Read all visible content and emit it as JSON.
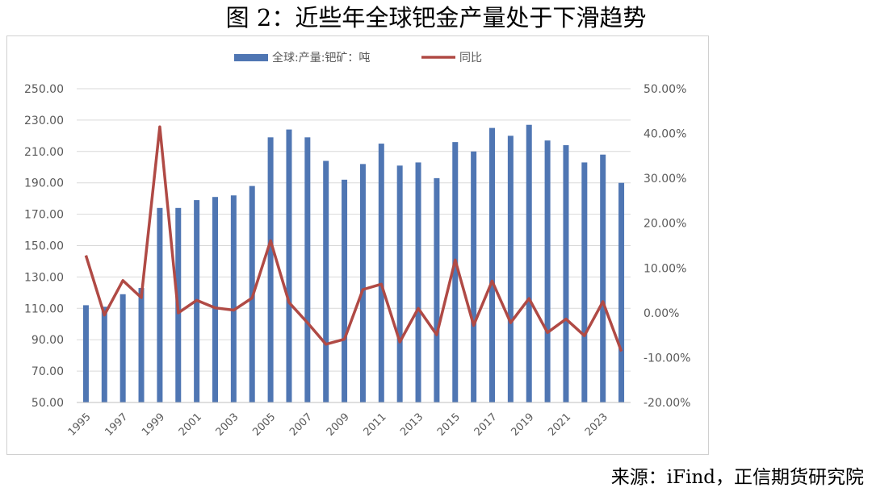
{
  "figure": {
    "title": "图 2：近些年全球钯金产量处于下滑趋势",
    "source": "来源：iFind，正信期货研究院"
  },
  "colors": {
    "bar": "#4F76B3",
    "line": "#B04A45",
    "grid": "#d9d9d9",
    "axis_text": "#595959"
  },
  "chart_data": {
    "type": "bar",
    "categories": [
      "1995",
      "1996",
      "1997",
      "1998",
      "1999",
      "2000",
      "2001",
      "2002",
      "2003",
      "2004",
      "2005",
      "2006",
      "2007",
      "2008",
      "2009",
      "2010",
      "2011",
      "2012",
      "2013",
      "2014",
      "2015",
      "2016",
      "2017",
      "2018",
      "2019",
      "2020",
      "2021",
      "2022",
      "2023",
      "2024"
    ],
    "x_tick_labels": [
      "1995",
      "1997",
      "1999",
      "2001",
      "2003",
      "2005",
      "2007",
      "2009",
      "2011",
      "2013",
      "2015",
      "2017",
      "2019",
      "2021",
      "2023"
    ],
    "series": [
      {
        "name": "全球:产量:钯矿：吨",
        "type": "bar",
        "axis": "left",
        "values": [
          112,
          111,
          119,
          123,
          174,
          174,
          179,
          181,
          182,
          188,
          219,
          224,
          219,
          204,
          192,
          202,
          215,
          201,
          203,
          193,
          216,
          210,
          225,
          220,
          227,
          217,
          214,
          203,
          208,
          190
        ]
      },
      {
        "name": "同比",
        "type": "line",
        "axis": "right",
        "values": [
          12.8,
          -0.5,
          7.2,
          3.4,
          41.5,
          0.0,
          2.8,
          1.1,
          0.6,
          3.3,
          16.1,
          2.3,
          -2.2,
          -7.0,
          -5.9,
          5.2,
          6.4,
          -6.5,
          1.0,
          -4.9,
          11.8,
          -2.8,
          7.1,
          -2.2,
          3.2,
          -4.4,
          -1.4,
          -5.1,
          2.5,
          -8.6
        ]
      }
    ],
    "y_left": {
      "lim": [
        50,
        250
      ],
      "ticks": [
        "50.00",
        "70.00",
        "90.00",
        "110.00",
        "130.00",
        "150.00",
        "170.00",
        "190.00",
        "210.00",
        "230.00",
        "250.00"
      ]
    },
    "y_right": {
      "lim": [
        -20,
        50
      ],
      "ticks": [
        "-20.00%",
        "-10.00%",
        "0.00%",
        "10.00%",
        "20.00%",
        "30.00%",
        "40.00%",
        "50.00%"
      ]
    },
    "grid": true,
    "legend_position": "top-center"
  }
}
